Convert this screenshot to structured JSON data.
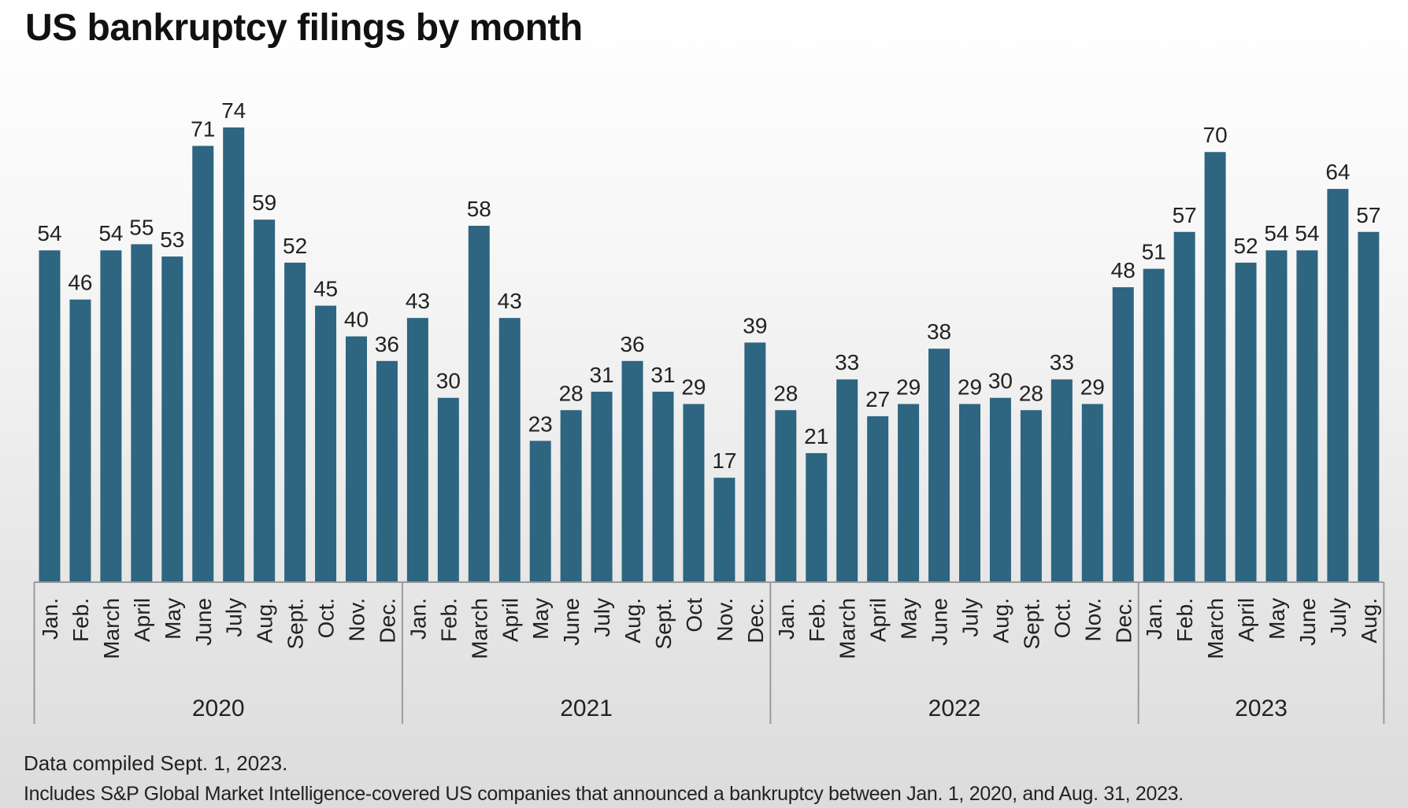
{
  "title": "US bankruptcy filings by month",
  "footnotes": {
    "compiled": "Data compiled Sept. 1, 2023.",
    "scope": "Includes S&P Global Market Intelligence-covered US companies that announced a bankruptcy between Jan. 1, 2020, and Aug. 31, 2023."
  },
  "colors": {
    "bar": "#2e6580",
    "axis": "#9a9a9a",
    "text": "#222222"
  },
  "chart_data": {
    "type": "bar",
    "title": "US bankruptcy filings by month",
    "xlabel": "",
    "ylabel": "",
    "ylim": [
      0,
      74
    ],
    "groups": [
      {
        "label": "2020",
        "categories": [
          "Jan.",
          "Feb.",
          "March",
          "April",
          "May",
          "June",
          "July",
          "Aug.",
          "Sept.",
          "Oct.",
          "Nov.",
          "Dec."
        ],
        "values": [
          54,
          46,
          54,
          55,
          53,
          71,
          74,
          59,
          52,
          45,
          40,
          36
        ]
      },
      {
        "label": "2021",
        "categories": [
          "Jan.",
          "Feb.",
          "March",
          "April",
          "May",
          "June",
          "July",
          "Aug.",
          "Sept.",
          "Oct",
          "Nov.",
          "Dec."
        ],
        "values": [
          43,
          30,
          58,
          43,
          23,
          28,
          31,
          36,
          31,
          29,
          17,
          39
        ]
      },
      {
        "label": "2022",
        "categories": [
          "Jan.",
          "Feb.",
          "March",
          "April",
          "May",
          "June",
          "July",
          "Aug.",
          "Sept.",
          "Oct.",
          "Nov.",
          "Dec."
        ],
        "values": [
          28,
          21,
          33,
          27,
          29,
          38,
          29,
          30,
          28,
          33,
          29,
          48
        ]
      },
      {
        "label": "2023",
        "categories": [
          "Jan.",
          "Feb.",
          "March",
          "April",
          "May",
          "June",
          "July",
          "Aug."
        ],
        "values": [
          51,
          57,
          70,
          52,
          54,
          54,
          64,
          57
        ]
      }
    ],
    "data_labels": true,
    "grid": false,
    "legend": "none"
  }
}
